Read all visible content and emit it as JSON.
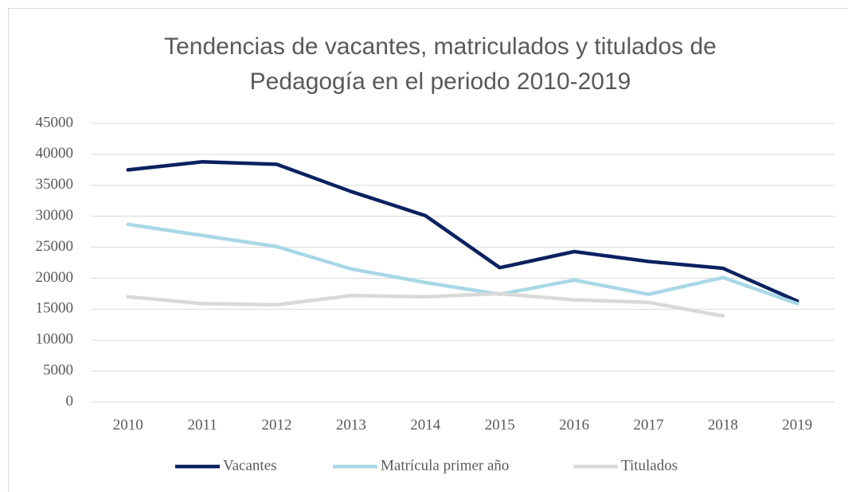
{
  "chart_data": {
    "type": "line",
    "title": [
      "Tendencias de vacantes, matriculados y titulados de",
      "Pedagogía en el periodo 2010-2019"
    ],
    "categories": [
      "2010",
      "2011",
      "2012",
      "2013",
      "2014",
      "2015",
      "2016",
      "2017",
      "2018",
      "2019"
    ],
    "series": [
      {
        "name": "Vacantes",
        "color": "#0b2160",
        "values": [
          37500,
          38800,
          38400,
          34000,
          30100,
          21700,
          24300,
          22700,
          21600,
          16300
        ]
      },
      {
        "name": "Matrícula primer año",
        "color": "#a8d8e6",
        "values": [
          28700,
          26900,
          25100,
          21500,
          19300,
          17400,
          19700,
          17400,
          20100,
          15900
        ]
      },
      {
        "name": "Titulados",
        "color": "#d9d9d9",
        "values": [
          17000,
          15900,
          15700,
          17200,
          17000,
          17500,
          16500,
          16100,
          13900,
          null
        ]
      }
    ],
    "ylim": [
      0,
      45000
    ],
    "yticks": [
      0,
      5000,
      10000,
      15000,
      20000,
      25000,
      30000,
      35000,
      40000,
      45000
    ],
    "grid": true,
    "legend": "bottom"
  }
}
